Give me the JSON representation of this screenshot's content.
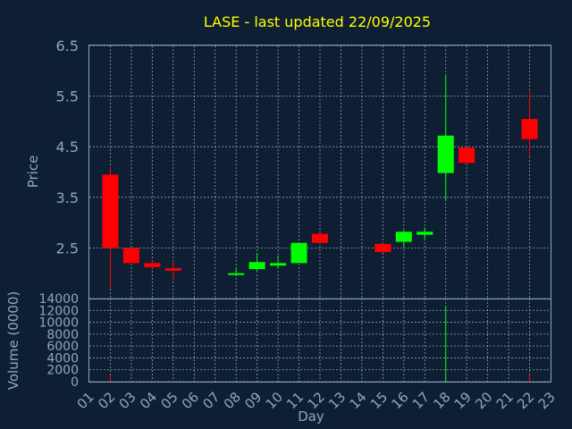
{
  "chart_data": {
    "type": "candlestick",
    "title": "LASE - last updated 22/09/2025",
    "xlabel": "Day",
    "ylabel": "Price",
    "volume_label": "Volume (0000)",
    "ylim": [
      1.5,
      6.5
    ],
    "yticks": [
      "2.5",
      "3.5",
      "4.5",
      "5.5",
      "6.5"
    ],
    "volume_ylim": [
      0,
      14000
    ],
    "volume_ticks": [
      "0",
      "2000",
      "4000",
      "6000",
      "8000",
      "10000",
      "12000",
      "14000"
    ],
    "x_labels": [
      "01",
      "02",
      "03",
      "04",
      "05",
      "06",
      "07",
      "08",
      "09",
      "10",
      "11",
      "12",
      "13",
      "14",
      "15",
      "16",
      "17",
      "18",
      "19",
      "20",
      "21",
      "22",
      "23"
    ],
    "candles": [
      {
        "day": "02",
        "open": 3.95,
        "high": 4.1,
        "low": 1.7,
        "close": 2.5
      },
      {
        "day": "03",
        "open": 2.5,
        "high": 2.5,
        "low": 2.2,
        "close": 2.2
      },
      {
        "day": "04",
        "open": 2.2,
        "high": 2.25,
        "low": 2.1,
        "close": 2.12
      },
      {
        "day": "05",
        "open": 2.1,
        "high": 2.25,
        "low": 1.85,
        "close": 2.05
      },
      {
        "day": "08",
        "open": 1.98,
        "high": 2.1,
        "low": 1.95,
        "close": 2.0
      },
      {
        "day": "09",
        "open": 2.08,
        "high": 2.4,
        "low": 2.05,
        "close": 2.22
      },
      {
        "day": "10",
        "open": 2.15,
        "high": 2.35,
        "low": 2.1,
        "close": 2.2
      },
      {
        "day": "11",
        "open": 2.2,
        "high": 2.6,
        "low": 2.2,
        "close": 2.6
      },
      {
        "day": "12",
        "open": 2.78,
        "high": 2.8,
        "low": 2.6,
        "close": 2.6
      },
      {
        "day": "15",
        "open": 2.58,
        "high": 2.6,
        "low": 2.4,
        "close": 2.42
      },
      {
        "day": "16",
        "open": 2.62,
        "high": 2.85,
        "low": 2.5,
        "close": 2.82
      },
      {
        "day": "17",
        "open": 2.76,
        "high": 2.9,
        "low": 2.68,
        "close": 2.82
      },
      {
        "day": "18",
        "open": 3.98,
        "high": 5.9,
        "low": 3.45,
        "close": 4.72
      },
      {
        "day": "19",
        "open": 4.48,
        "high": 4.5,
        "low": 4.15,
        "close": 4.18
      },
      {
        "day": "22",
        "open": 5.05,
        "high": 5.6,
        "low": 4.3,
        "close": 4.65
      }
    ],
    "volume": [
      {
        "day": "02",
        "value": 1100,
        "direction": "down"
      },
      {
        "day": "03",
        "value": 150,
        "direction": "down"
      },
      {
        "day": "04",
        "value": 100,
        "direction": "down"
      },
      {
        "day": "05",
        "value": 100,
        "direction": "down"
      },
      {
        "day": "08",
        "value": 50,
        "direction": "up"
      },
      {
        "day": "09",
        "value": 100,
        "direction": "up"
      },
      {
        "day": "10",
        "value": 100,
        "direction": "up"
      },
      {
        "day": "11",
        "value": 150,
        "direction": "up"
      },
      {
        "day": "12",
        "value": 150,
        "direction": "down"
      },
      {
        "day": "15",
        "value": 100,
        "direction": "down"
      },
      {
        "day": "16",
        "value": 100,
        "direction": "up"
      },
      {
        "day": "17",
        "value": 100,
        "direction": "up"
      },
      {
        "day": "18",
        "value": 12800,
        "direction": "up"
      },
      {
        "day": "19",
        "value": 300,
        "direction": "down"
      },
      {
        "day": "22",
        "value": 1100,
        "direction": "down"
      }
    ],
    "colors": {
      "up": "#00ff00",
      "down": "#ff0000",
      "background": "#0f1f33",
      "text": "#8ea6c4",
      "title": "#ffff00"
    },
    "grid": true
  }
}
